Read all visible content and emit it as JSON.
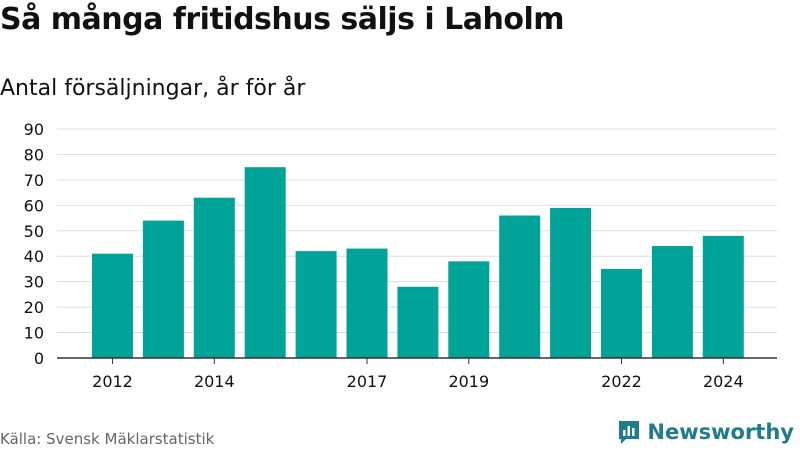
{
  "title": "Så många fritidshus säljs i Laholm",
  "subtitle": "Antal försäljningar, år för år",
  "source": "Källa: Svensk Mäklarstatistik",
  "brand": {
    "name": "Newsworthy",
    "icon": "bar-chart-icon",
    "color": "#1f7c8a"
  },
  "chart_data": {
    "type": "bar",
    "categories": [
      "2012",
      "2013",
      "2014",
      "2015",
      "2016",
      "2017",
      "2018",
      "2019",
      "2020",
      "2021",
      "2022",
      "2023",
      "2024"
    ],
    "values": [
      41,
      54,
      63,
      75,
      42,
      43,
      28,
      38,
      56,
      59,
      35,
      44,
      48
    ],
    "visible_x_ticks": [
      "2012",
      "2014",
      "2017",
      "2019",
      "2022",
      "2024"
    ],
    "yticks": [
      0,
      10,
      20,
      30,
      40,
      50,
      60,
      70,
      80,
      90
    ],
    "ylim": [
      0,
      90
    ],
    "grid": true,
    "bar_color": "#00a398",
    "title": "Så många fritidshus säljs i Laholm",
    "xlabel": "",
    "ylabel": ""
  }
}
